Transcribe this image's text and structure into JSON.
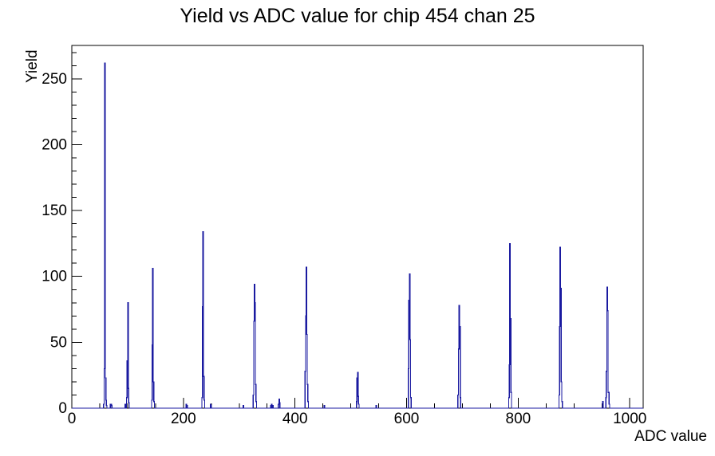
{
  "chart_data": {
    "type": "histogram",
    "title": "Yield vs ADC value for chip 454 chan 25",
    "xlabel": "ADC value",
    "ylabel": "Yield",
    "xlim": [
      0,
      1024
    ],
    "ylim": [
      0,
      275.3
    ],
    "x_major_ticks": [
      0,
      200,
      400,
      600,
      800,
      1000
    ],
    "x_minor_tick_step": 50,
    "y_major_ticks": [
      0,
      50,
      100,
      150,
      200,
      250
    ],
    "y_minor_tick_step": 10,
    "y_minor_tick_max": 270,
    "grid": false,
    "legend": false,
    "line_color": "#1a1aa0",
    "frame_color": "#000000",
    "text_color": "#000000",
    "bins": [
      [
        57,
        3
      ],
      [
        58,
        30
      ],
      [
        59,
        262
      ],
      [
        60,
        23
      ],
      [
        61,
        6
      ],
      [
        62,
        2
      ],
      [
        69,
        3
      ],
      [
        70,
        3
      ],
      [
        71,
        2
      ],
      [
        95,
        3
      ],
      [
        98,
        8
      ],
      [
        99,
        36
      ],
      [
        100,
        80
      ],
      [
        101,
        15
      ],
      [
        102,
        4
      ],
      [
        143,
        6
      ],
      [
        144,
        48
      ],
      [
        145,
        106
      ],
      [
        146,
        20
      ],
      [
        147,
        5
      ],
      [
        205,
        3
      ],
      [
        206,
        2
      ],
      [
        233,
        8
      ],
      [
        234,
        77
      ],
      [
        235,
        134
      ],
      [
        236,
        24
      ],
      [
        237,
        6
      ],
      [
        248,
        3
      ],
      [
        249,
        2
      ],
      [
        307,
        2
      ],
      [
        325,
        10
      ],
      [
        326,
        66
      ],
      [
        327,
        94
      ],
      [
        328,
        80
      ],
      [
        329,
        18
      ],
      [
        330,
        5
      ],
      [
        356,
        2
      ],
      [
        358,
        3
      ],
      [
        360,
        2
      ],
      [
        370,
        3
      ],
      [
        371,
        7
      ],
      [
        372,
        4
      ],
      [
        418,
        28
      ],
      [
        419,
        70
      ],
      [
        420,
        107
      ],
      [
        421,
        56
      ],
      [
        422,
        18
      ],
      [
        423,
        5
      ],
      [
        452,
        2
      ],
      [
        510,
        5
      ],
      [
        511,
        23
      ],
      [
        512,
        27
      ],
      [
        513,
        9
      ],
      [
        514,
        3
      ],
      [
        545,
        2
      ],
      [
        603,
        30
      ],
      [
        604,
        82
      ],
      [
        605,
        102
      ],
      [
        606,
        52
      ],
      [
        607,
        8
      ],
      [
        692,
        10
      ],
      [
        693,
        45
      ],
      [
        694,
        78
      ],
      [
        695,
        62
      ],
      [
        696,
        8
      ],
      [
        783,
        8
      ],
      [
        784,
        33
      ],
      [
        785,
        125
      ],
      [
        786,
        68
      ],
      [
        787,
        12
      ],
      [
        873,
        10
      ],
      [
        874,
        62
      ],
      [
        875,
        122
      ],
      [
        876,
        91
      ],
      [
        877,
        20
      ],
      [
        878,
        5
      ],
      [
        951,
        5
      ],
      [
        957,
        8
      ],
      [
        958,
        28
      ],
      [
        959,
        92
      ],
      [
        960,
        74
      ],
      [
        961,
        12
      ],
      [
        962,
        12
      ],
      [
        963,
        3
      ]
    ]
  }
}
